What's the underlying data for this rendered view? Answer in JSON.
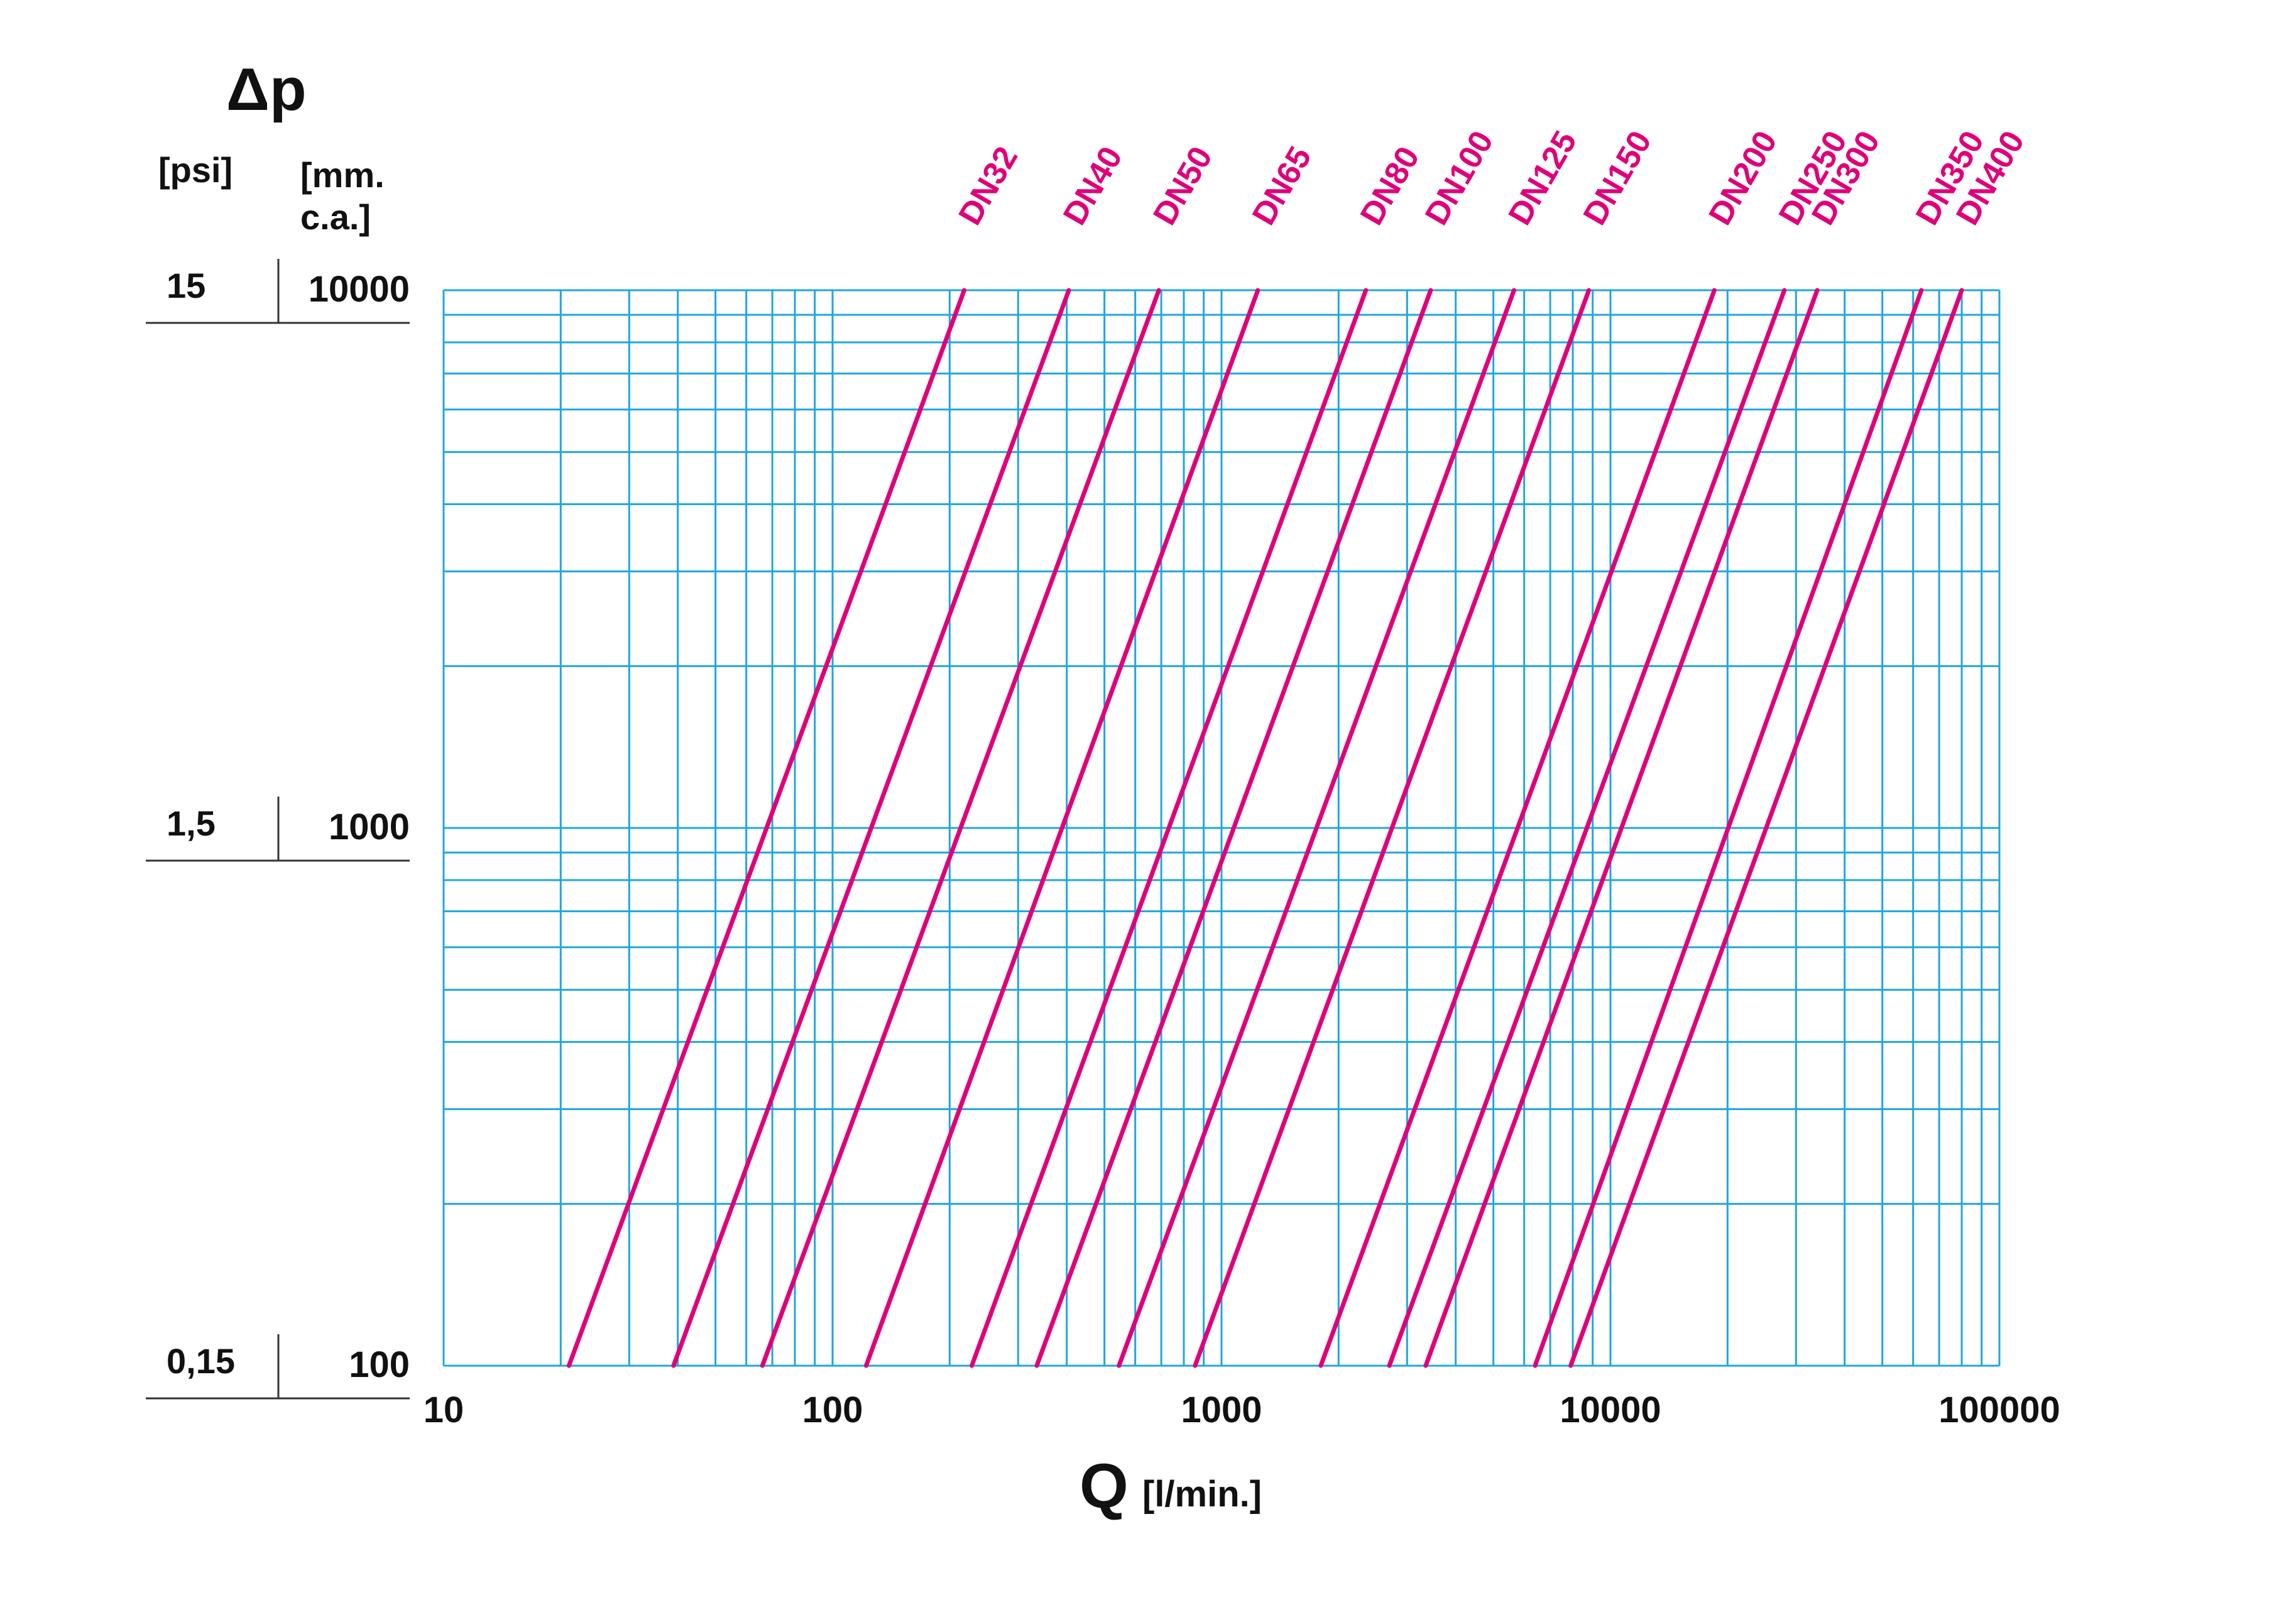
{
  "chart_data": {
    "type": "line",
    "title": "Δp",
    "xlabel": "Q",
    "xunit": "[l/min.]",
    "y_unit_psi": "[psi]",
    "y_unit_mm_line1": "[mm.",
    "y_unit_mm_line2": "c.a.]",
    "x_scale": "log",
    "y_scale": "log",
    "xlim": [
      10,
      100000
    ],
    "ylim": [
      100,
      10000
    ],
    "grid": true,
    "x_tick_labels": [
      "10",
      "100",
      "1000",
      "10000",
      "100000"
    ],
    "y_ticks": [
      {
        "mm": "10000",
        "psi": "15"
      },
      {
        "mm": "1000",
        "psi": "1,5"
      },
      {
        "mm": "100",
        "psi": "0,15"
      }
    ],
    "colors": {
      "grid": "#1ea7df",
      "series": "#e0007a",
      "text": "#111111"
    },
    "series": [
      {
        "name": "DN32",
        "points": [
          [
            21,
            100
          ],
          [
            218,
            10000
          ]
        ]
      },
      {
        "name": "DN40",
        "points": [
          [
            39,
            100
          ],
          [
            405,
            10000
          ]
        ]
      },
      {
        "name": "DN50",
        "points": [
          [
            66,
            100
          ],
          [
            690,
            10000
          ]
        ]
      },
      {
        "name": "DN65",
        "points": [
          [
            122,
            100
          ],
          [
            1240,
            10000
          ]
        ]
      },
      {
        "name": "DN80",
        "points": [
          [
            228,
            100
          ],
          [
            2350,
            10000
          ]
        ]
      },
      {
        "name": "DN100",
        "points": [
          [
            335,
            100
          ],
          [
            3450,
            10000
          ]
        ]
      },
      {
        "name": "DN125",
        "points": [
          [
            545,
            100
          ],
          [
            5650,
            10000
          ]
        ]
      },
      {
        "name": "DN150",
        "points": [
          [
            855,
            100
          ],
          [
            8800,
            10000
          ]
        ]
      },
      {
        "name": "DN200",
        "points": [
          [
            1800,
            100
          ],
          [
            18500,
            10000
          ]
        ]
      },
      {
        "name": "DN250",
        "points": [
          [
            2700,
            100
          ],
          [
            28000,
            10000
          ]
        ]
      },
      {
        "name": "DN300",
        "points": [
          [
            3350,
            100
          ],
          [
            34000,
            10000
          ]
        ]
      },
      {
        "name": "DN350",
        "points": [
          [
            6400,
            100
          ],
          [
            63000,
            10000
          ]
        ]
      },
      {
        "name": "DN400",
        "points": [
          [
            7900,
            100
          ],
          [
            80000,
            10000
          ]
        ]
      }
    ]
  }
}
